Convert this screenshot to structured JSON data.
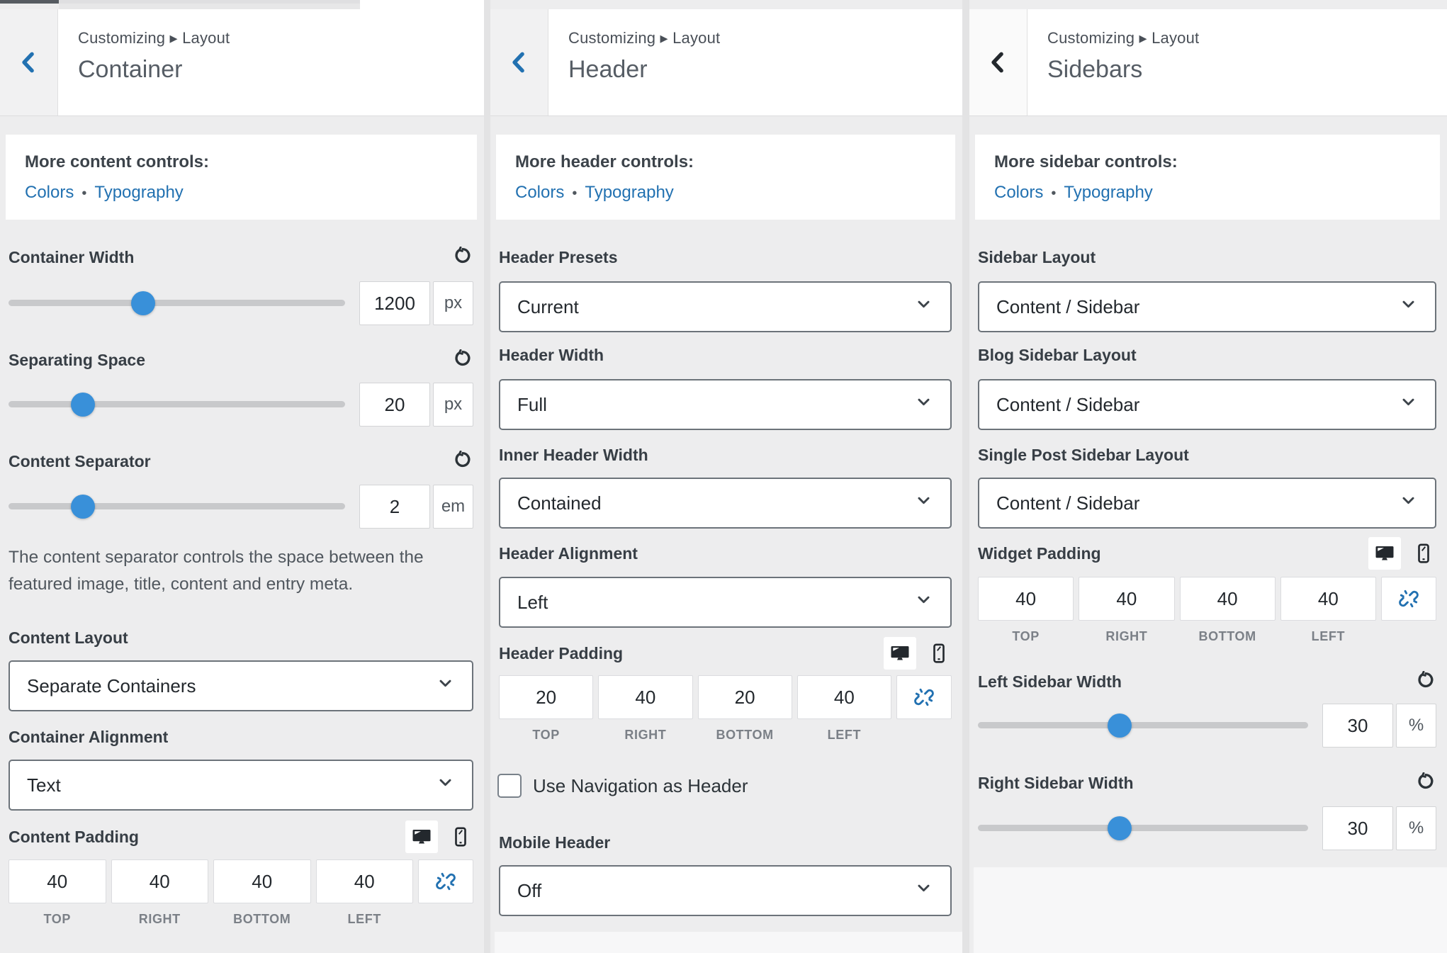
{
  "colors": {
    "accent_blue": "#2271b1",
    "slider_thumb": "#3990d9",
    "dark_icon": "#23282d",
    "panel_bg": "#ededee",
    "header_bg": "#ffffff"
  },
  "icons": {
    "back": "chevron-left",
    "reset": "rotate-counterclockwise",
    "desktop": "monitor",
    "mobile": "smartphone",
    "unlink": "broken-chain-link",
    "select_caret": "chevron-down"
  },
  "panels": [
    {
      "breadcrumb": "Customizing ▸ Layout",
      "title": "Container",
      "more": {
        "heading": "More content controls:",
        "links": [
          "Colors",
          "Typography"
        ],
        "separator": "•"
      },
      "sections": {
        "container_width": {
          "label": "Container Width",
          "value": "1200",
          "unit": "px",
          "slider_pct": 40
        },
        "separating_space": {
          "label": "Separating Space",
          "value": "20",
          "unit": "px",
          "slider_pct": 22
        },
        "content_separator": {
          "label": "Content Separator",
          "value": "2",
          "unit": "em",
          "slider_pct": 22
        },
        "separator_description": "The content separator controls the space between the featured image, title, content and entry meta.",
        "content_layout": {
          "label": "Content Layout",
          "value": "Separate Containers"
        },
        "container_alignment": {
          "label": "Container Alignment",
          "value": "Text"
        },
        "content_padding": {
          "label": "Content Padding",
          "values": [
            "40",
            "40",
            "40",
            "40"
          ],
          "sides": [
            "TOP",
            "RIGHT",
            "BOTTOM",
            "LEFT"
          ]
        }
      }
    },
    {
      "breadcrumb": "Customizing ▸ Layout",
      "title": "Header",
      "more": {
        "heading": "More header controls:",
        "links": [
          "Colors",
          "Typography"
        ],
        "separator": "•"
      },
      "sections": {
        "header_presets": {
          "label": "Header Presets",
          "value": "Current"
        },
        "header_width": {
          "label": "Header Width",
          "value": "Full"
        },
        "inner_header_width": {
          "label": "Inner Header Width",
          "value": "Contained"
        },
        "header_alignment": {
          "label": "Header Alignment",
          "value": "Left"
        },
        "header_padding": {
          "label": "Header Padding",
          "values": [
            "20",
            "40",
            "20",
            "40"
          ],
          "sides": [
            "TOP",
            "RIGHT",
            "BOTTOM",
            "LEFT"
          ]
        },
        "use_navigation": {
          "label": "Use Navigation as Header",
          "checked": false
        },
        "mobile_header": {
          "label": "Mobile Header",
          "value": "Off"
        }
      }
    },
    {
      "breadcrumb": "Customizing ▸ Layout",
      "title": "Sidebars",
      "more": {
        "heading": "More sidebar controls:",
        "links": [
          "Colors",
          "Typography"
        ],
        "separator": "•"
      },
      "sections": {
        "sidebar_layout": {
          "label": "Sidebar Layout",
          "value": "Content / Sidebar"
        },
        "blog_sidebar_layout": {
          "label": "Blog Sidebar Layout",
          "value": "Content / Sidebar"
        },
        "single_post_sidebar_layout": {
          "label": "Single Post Sidebar Layout",
          "value": "Content / Sidebar"
        },
        "widget_padding": {
          "label": "Widget Padding",
          "values": [
            "40",
            "40",
            "40",
            "40"
          ],
          "sides": [
            "TOP",
            "RIGHT",
            "BOTTOM",
            "LEFT"
          ]
        },
        "left_sidebar_width": {
          "label": "Left Sidebar Width",
          "value": "30",
          "unit": "%",
          "slider_pct": 43
        },
        "right_sidebar_width": {
          "label": "Right Sidebar Width",
          "value": "30",
          "unit": "%",
          "slider_pct": 43
        }
      }
    }
  ]
}
